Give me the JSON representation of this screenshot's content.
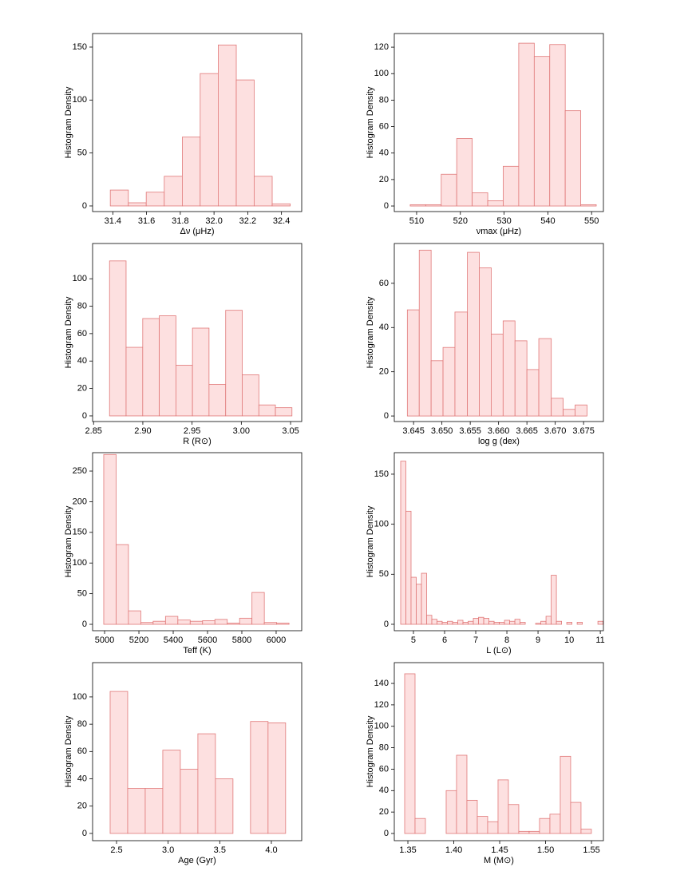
{
  "chart_data": [
    {
      "type": "histogram",
      "xlabel": "Δν (μHz)",
      "ylabel": "Histogram Density",
      "color": "#fde0e0",
      "edgecolor": "#e07878",
      "bins": [
        31.385,
        31.492,
        31.598,
        31.705,
        31.812,
        31.918,
        32.025,
        32.132,
        32.238,
        32.345,
        32.452
      ],
      "values": [
        15,
        3,
        13,
        28,
        65,
        125,
        152,
        119,
        28,
        2
      ],
      "xlim": [
        31.28,
        32.52
      ],
      "ylim": [
        -5.3,
        162.8
      ],
      "xticks": [
        31.4,
        31.6,
        31.8,
        {
          "value": 32,
          "label": "32.0"
        },
        32.2,
        32.4
      ],
      "yticks": [
        0,
        50,
        100,
        150
      ]
    },
    {
      "type": "histogram",
      "xlabel": "νmax (μHz)",
      "ylabel": "Histogram Density",
      "color": "#fde0e0",
      "edgecolor": "#e07878",
      "bins": [
        508.54,
        512.08,
        515.63,
        519.17,
        522.71,
        526.26,
        529.8,
        533.34,
        536.89,
        540.43,
        543.97,
        547.52,
        551.06
      ],
      "values": [
        1,
        1,
        24,
        51,
        10,
        4,
        30,
        123,
        113,
        122,
        72,
        1
      ],
      "xlim": [
        504.9,
        552.7
      ],
      "ylim": [
        -4.2,
        130.3
      ],
      "xticks": [
        510,
        520,
        530,
        540,
        550
      ],
      "yticks": [
        0,
        20,
        40,
        60,
        80,
        100,
        120
      ]
    },
    {
      "type": "histogram",
      "xlabel": "R (R⊙)",
      "ylabel": "Histogram Density",
      "color": "#fde0e0",
      "edgecolor": "#e07878",
      "bins": [
        2.8662,
        2.883,
        2.8999,
        2.9167,
        2.9336,
        2.9504,
        2.9672,
        2.9841,
        3.0009,
        3.0178,
        3.0346,
        3.0514
      ],
      "values": [
        113,
        50,
        71,
        73,
        37,
        64,
        23,
        77,
        30,
        8,
        6
      ],
      "xlim": [
        2.849,
        3.0613
      ],
      "ylim": [
        -4.1,
        125.7
      ],
      "xticks": [
        2.85,
        {
          "value": 2.9,
          "label": "2.90"
        },
        2.95,
        {
          "value": 3,
          "label": "3.00"
        },
        3.05
      ],
      "yticks": [
        0,
        20,
        40,
        60,
        80,
        100
      ]
    },
    {
      "type": "histogram",
      "xlabel": "log g (dex)",
      "ylabel": "Histogram Density",
      "color": "#fde0e0",
      "edgecolor": "#e07878",
      "bins": [
        3.6439,
        3.646,
        3.6481,
        3.6502,
        3.6523,
        3.6545,
        3.6566,
        3.6587,
        3.6608,
        3.6629,
        3.665,
        3.6671,
        3.6693,
        3.6714,
        3.6735,
        3.6756
      ],
      "values": [
        48,
        75,
        25,
        31,
        47,
        74,
        67,
        37,
        43,
        34,
        21,
        35,
        8,
        3,
        5
      ],
      "xlim": [
        3.6416,
        3.6785
      ],
      "ylim": [
        -2.5,
        78
      ],
      "xticks": [
        3.645,
        {
          "value": 3.65,
          "label": "3.650"
        },
        3.655,
        {
          "value": 3.66,
          "label": "3.660"
        },
        3.665,
        {
          "value": 3.67,
          "label": "3.670"
        },
        3.675
      ],
      "yticks": [
        0,
        20,
        40,
        60
      ]
    },
    {
      "type": "histogram",
      "xlabel": "Teff (K)",
      "ylabel": "Histogram Density",
      "color": "#fde0e0",
      "edgecolor": "#e07878",
      "bins": [
        4995,
        5067,
        5139,
        5211,
        5283,
        5355,
        5427,
        5499,
        5571,
        5643,
        5715,
        5787,
        5859,
        5931,
        6003,
        6075
      ],
      "values": [
        277,
        130,
        22,
        3,
        5,
        13,
        7,
        5,
        6,
        8,
        2,
        10,
        52,
        3,
        2
      ],
      "xlim": [
        4930,
        6149
      ],
      "ylim": [
        -10.4,
        280
      ],
      "xticks": [
        5000,
        5200,
        5400,
        5600,
        5800,
        6000
      ],
      "yticks": [
        0,
        50,
        100,
        150,
        200,
        250
      ]
    },
    {
      "type": "histogram",
      "xlabel": "L (L⊙)",
      "ylabel": "Histogram Density",
      "color": "#fde0e0",
      "edgecolor": "#e07878",
      "bins": [
        4.59,
        4.757,
        4.923,
        5.09,
        5.257,
        5.423,
        5.59,
        5.757,
        5.923,
        6.09,
        6.257,
        6.423,
        6.59,
        6.757,
        6.923,
        7.09,
        7.257,
        7.423,
        7.59,
        7.757,
        7.923,
        8.09,
        8.257,
        8.423,
        8.59,
        8.757,
        8.923,
        9.09,
        9.257,
        9.423,
        9.59,
        9.757,
        9.923,
        10.09,
        10.257,
        10.423,
        10.59,
        10.757,
        10.923,
        11.09
      ],
      "values": [
        163,
        113,
        47,
        40,
        51,
        9,
        5,
        3,
        2,
        3,
        2,
        4,
        2,
        3,
        6,
        7,
        6,
        3,
        2,
        2,
        4,
        3,
        5,
        2,
        0,
        0,
        1,
        3,
        8,
        49,
        3,
        0,
        2,
        0,
        2,
        0,
        0,
        0,
        3
      ],
      "xlim": [
        4.385,
        11.1
      ],
      "ylim": [
        -6.4,
        171.5
      ],
      "xticks": [
        5,
        6,
        7,
        8,
        9,
        10,
        11
      ],
      "yticks": [
        0,
        50,
        100,
        150
      ]
    },
    {
      "type": "histogram",
      "xlabel": "Age (Gyr)",
      "ylabel": "Histogram Density",
      "color": "#fde0e0",
      "edgecolor": "#e07878",
      "bins": [
        2.438,
        2.608,
        2.778,
        2.948,
        3.118,
        3.288,
        3.458,
        3.628,
        3.798,
        3.968,
        4.138
      ],
      "values": [
        104,
        33,
        33,
        61,
        47,
        73,
        40,
        0,
        82,
        81
      ],
      "xlim": [
        2.268,
        4.294
      ],
      "ylim": [
        -5.3,
        125.1
      ],
      "xticks": [
        2.5,
        {
          "value": 3,
          "label": "3.0"
        },
        3.5,
        {
          "value": 4,
          "label": "4.0"
        }
      ],
      "yticks": [
        0,
        20,
        40,
        60,
        80,
        100
      ]
    },
    {
      "type": "histogram",
      "xlabel": "M (M⊙)",
      "ylabel": "Histogram Density",
      "color": "#fde0e0",
      "edgecolor": "#e07878",
      "bins": [
        1.3465,
        1.3578,
        1.3691,
        1.3804,
        1.3917,
        1.403,
        1.4143,
        1.4256,
        1.4369,
        1.4482,
        1.4595,
        1.4708,
        1.4821,
        1.4934,
        1.5047,
        1.516,
        1.5273,
        1.5386,
        1.5499
      ],
      "values": [
        149,
        14,
        0,
        0,
        40,
        73,
        31,
        16,
        11,
        50,
        27,
        2,
        2,
        14,
        18,
        72,
        29,
        4
      ],
      "xlim": [
        1.3352,
        1.563
      ],
      "ylim": [
        -6.7,
        159.4
      ],
      "xticks": [
        1.35,
        {
          "value": 1.4,
          "label": "1.40"
        },
        1.45,
        {
          "value": 1.5,
          "label": "1.50"
        },
        1.55
      ],
      "yticks": [
        0,
        20,
        40,
        60,
        80,
        100,
        120,
        140
      ]
    }
  ]
}
